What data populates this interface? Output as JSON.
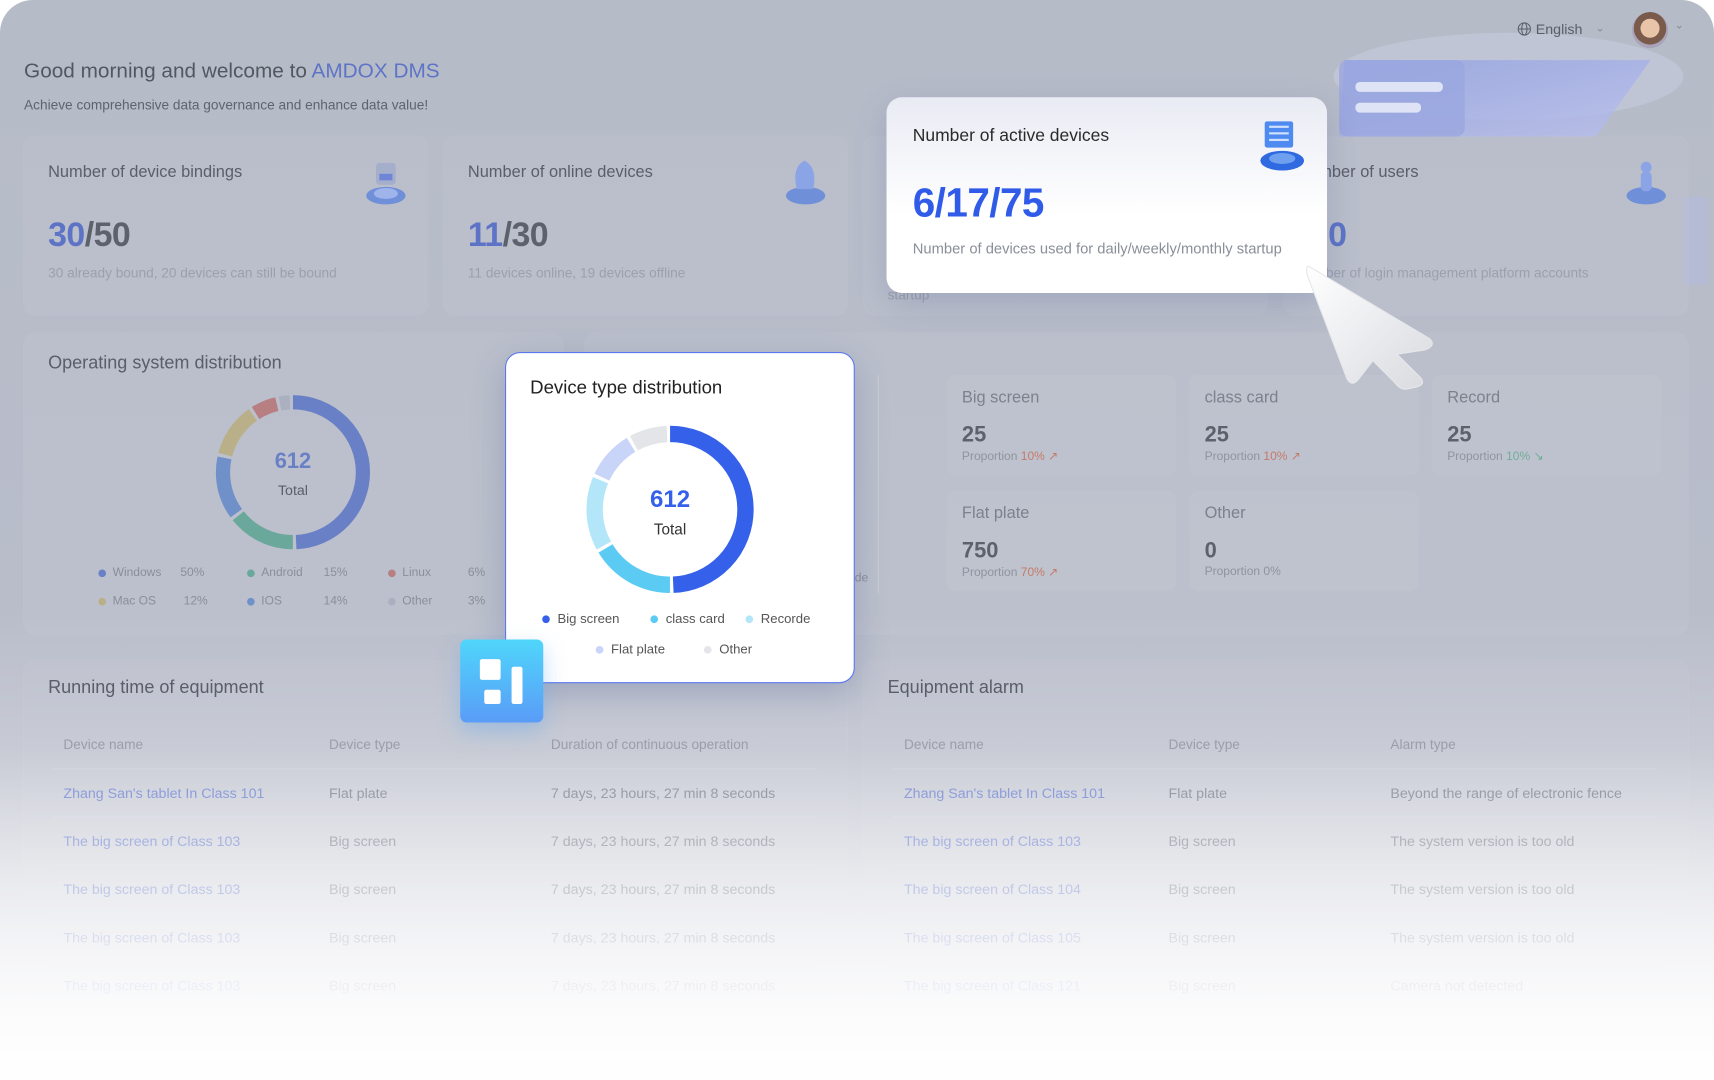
{
  "header": {
    "language": "English",
    "language_icon": "globe-icon",
    "avatar": "user-avatar"
  },
  "welcome": {
    "prefix": "Good morning and welcome to ",
    "brand": "AMDOX DMS",
    "subtitle": "Achieve comprehensive data governance and enhance data value!"
  },
  "stats": [
    {
      "title": "Number of device bindings",
      "value_a": "30",
      "value_b": "/50",
      "desc": "30 already bound, 20 devices can still be bound"
    },
    {
      "title": "Number of online devices",
      "value_a": "11",
      "value_b": "/30",
      "desc": "11 devices online, 19 devices offline"
    },
    {
      "title": "Number of active devices",
      "value": "6/17/75",
      "desc": "Number of devices used for daily/weekly/monthly startup",
      "desc_behind": "startup"
    },
    {
      "title": "Number of users",
      "title_visible": "mber of users",
      "value": "0",
      "desc": "Number of login management platform accounts",
      "desc_visible": "ber of login management platform accounts"
    }
  ],
  "os_distribution": {
    "title": "Operating system distribution",
    "total": "612",
    "total_label": "Total",
    "chart_data": {
      "type": "pie",
      "total": 612,
      "series": [
        {
          "name": "Windows",
          "value": 50,
          "label": "50%",
          "color": "#6a80c6"
        },
        {
          "name": "Android",
          "value": 15,
          "label": "15%",
          "color": "#6aa89b"
        },
        {
          "name": "IOS",
          "value": 14,
          "label": "14%",
          "color": "#6f90c8"
        },
        {
          "name": "Mac OS",
          "value": 12,
          "label": "12%",
          "color": "#b9b08a"
        },
        {
          "name": "Linux",
          "value": 6,
          "label": "6%",
          "color": "#b77f82"
        },
        {
          "name": "Other",
          "value": 3,
          "label": "3%",
          "color": "#aab0bf"
        }
      ]
    }
  },
  "device_type_popup": {
    "title": "Device type distribution",
    "total": "612",
    "total_label": "Total",
    "behind_text": "de",
    "chart_data": {
      "type": "pie",
      "total": 612,
      "series": [
        {
          "name": "Big screen",
          "value": 50,
          "color": "#3561ea"
        },
        {
          "name": "class card",
          "value": 17,
          "color": "#5ccbf4"
        },
        {
          "name": "Recorde",
          "value": 15,
          "color": "#b4e6fa"
        },
        {
          "name": "Flat plate",
          "value": 10,
          "color": "#c8d5f8"
        },
        {
          "name": "Other",
          "value": 8,
          "color": "#e3e5e9"
        }
      ]
    }
  },
  "device_types": [
    {
      "name": "Big screen",
      "value": "25",
      "prop_label": "Proportion",
      "prop": "10%",
      "trend": "up"
    },
    {
      "name": "class card",
      "value": "25",
      "prop_label": "Proportion",
      "prop": "10%",
      "trend": "up"
    },
    {
      "name": "Record",
      "value": "25",
      "prop_label": "Proportion",
      "prop": "10%",
      "trend": "down"
    },
    {
      "name": "Flat plate",
      "value": "750",
      "prop_label": "Proportion",
      "prop": "70%",
      "trend": "up"
    },
    {
      "name": "Other",
      "value": "0",
      "prop_label": "Proportion",
      "prop": "0%",
      "trend": "none"
    }
  ],
  "running": {
    "title": "Running time of equipment",
    "columns": [
      "Device name",
      "Device type",
      "Duration of continuous operation"
    ],
    "rows": [
      [
        "Zhang San's tablet In Class 101",
        "Flat plate",
        "7 days, 23 hours, 27 min 8 seconds"
      ],
      [
        "The big screen of Class 103",
        "Big screen",
        "7 days, 23 hours, 27 min 8 seconds"
      ],
      [
        "The big screen of Class 103",
        "Big screen",
        "7 days, 23 hours, 27 min 8 seconds"
      ],
      [
        "The big screen of Class 103",
        "Big screen",
        "7 days, 23 hours, 27 min 8 seconds"
      ],
      [
        "The big screen of Class 103",
        "Big screen",
        "7 days, 23 hours, 27 min 8 seconds"
      ]
    ]
  },
  "alarm": {
    "title": "Equipment alarm",
    "columns": [
      "Device name",
      "Device type",
      "Alarm type"
    ],
    "rows": [
      [
        "Zhang San's tablet In Class 101",
        "Flat plate",
        "Beyond the range of electronic fence"
      ],
      [
        "The big screen of Class 103",
        "Big screen",
        "The system version is too old"
      ],
      [
        "The big screen of Class 104",
        "Big screen",
        "The system version is too old"
      ],
      [
        "The big screen of Class 105",
        "Big screen",
        "The system version is too old"
      ],
      [
        "The big screen of Class 121",
        "Big screen",
        "Camera not detected"
      ]
    ]
  },
  "colors": {
    "accent": "#3561ea",
    "brand": "#5d74c6",
    "up": "#c47a6a",
    "down": "#6fae97",
    "tile": "#4fc6f7"
  }
}
